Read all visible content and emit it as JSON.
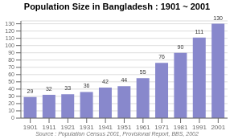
{
  "chart_data": {
    "type": "bar",
    "title": "Population Size in Bangladesh : 1901 ~ 2001",
    "categories": [
      "1901",
      "1911",
      "1921",
      "1931",
      "1941",
      "1951",
      "1961",
      "1971",
      "1981",
      "1991",
      "2001"
    ],
    "values": [
      29,
      32,
      33,
      36,
      42,
      44,
      55,
      76,
      90,
      111,
      130
    ],
    "color": "#8888cc",
    "ylim": [
      0,
      134
    ],
    "yticks": [
      0,
      10,
      20,
      30,
      40,
      50,
      60,
      70,
      80,
      90,
      100,
      110,
      120,
      130
    ],
    "grid": true,
    "data_labels": true,
    "annotations": [
      "Source : Population Census 2001, Provisional Report, BBS, 2002"
    ]
  }
}
